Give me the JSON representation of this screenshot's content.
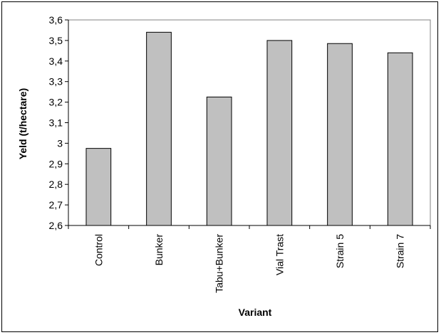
{
  "chart_data": {
    "type": "bar",
    "title": "",
    "xlabel": "Variant",
    "ylabel": "Yeld (t/hectare)",
    "categories": [
      "Control",
      "Bunker",
      "Tabu+Bunker",
      "Vial Trast",
      "Strain 5",
      "Strain 7"
    ],
    "values": [
      2.975,
      3.54,
      3.225,
      3.5,
      3.485,
      3.44
    ],
    "ylim": [
      2.6,
      3.6
    ],
    "yticks": [
      "2,6",
      "2,7",
      "2,8",
      "2,9",
      "3",
      "3,1",
      "3,2",
      "3,3",
      "3,4",
      "3,5",
      "3,6"
    ],
    "grid": false,
    "legend": "none",
    "colors": {
      "bar_fill": "#c0c0c0",
      "bar_stroke": "#000000",
      "plot_bg": "#ffffff"
    }
  }
}
